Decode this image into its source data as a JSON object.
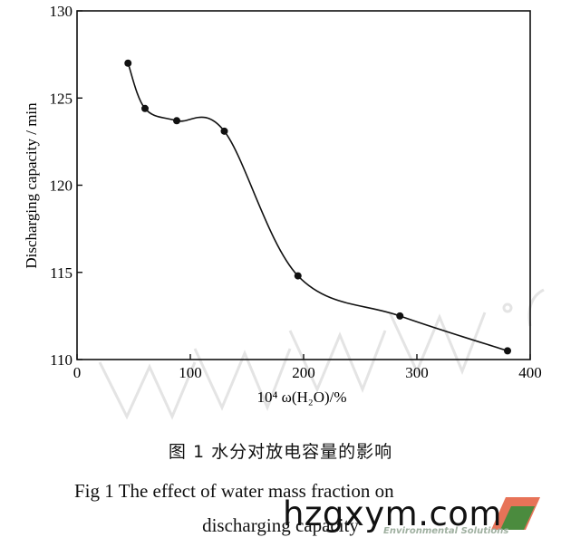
{
  "chart_data": {
    "type": "line",
    "xlabel": "10⁴ ω(H₂O)/%",
    "ylabel": "Discharging capacity / min",
    "xlim": [
      0,
      400
    ],
    "ylim": [
      110,
      130
    ],
    "xticks": [
      "0",
      "100",
      "200",
      "300",
      "400"
    ],
    "yticks": [
      "110",
      "115",
      "120",
      "125",
      "130"
    ],
    "x": [
      45,
      60,
      88,
      130,
      195,
      285,
      380
    ],
    "y": [
      127.0,
      124.4,
      123.7,
      123.1,
      114.8,
      112.5,
      110.5
    ],
    "grid": false
  },
  "caption": {
    "cn": "图 1   水分对放电容量的影响",
    "en_line1": "Fig 1    The effect of water mass fraction on",
    "en_line2": "discharging capacity"
  },
  "watermark": {
    "text": "hzgxym.com",
    "subtext": "Environmental Solutions"
  }
}
